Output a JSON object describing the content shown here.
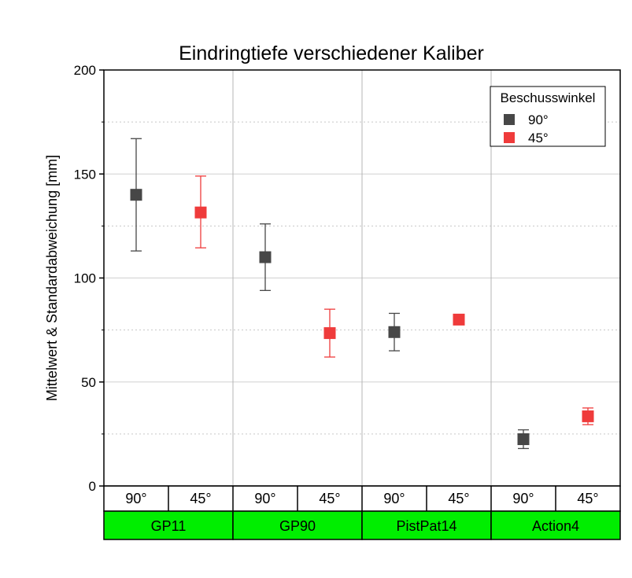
{
  "chart_data": {
    "type": "scatter",
    "title": "Eindringtiefe verschiedener Kaliber",
    "ylabel": "Mittelwert & Standardabweichung [mm]",
    "ylim": [
      0,
      200
    ],
    "yticks": [
      "0",
      "50",
      "100",
      "150",
      "200"
    ],
    "grid": true,
    "legend": {
      "title": "Beschusswinkel",
      "placement": "top-right",
      "entries": [
        "90°",
        "45°"
      ]
    },
    "colors": {
      "90°": "#474747",
      "45°": "#ef3b3b",
      "group_band": "#00ee00"
    },
    "groups": [
      "GP11",
      "GP90",
      "PistPat14",
      "Action4"
    ],
    "categories": [
      "90°",
      "45°",
      "90°",
      "45°",
      "90°",
      "45°",
      "90°",
      "45°"
    ],
    "series": [
      {
        "name": "90°",
        "x_index": [
          0,
          2,
          4,
          6
        ],
        "values": [
          140,
          110,
          74,
          22.5
        ],
        "error_low": [
          113,
          94,
          65,
          18
        ],
        "error_high": [
          167,
          126,
          83,
          27
        ]
      },
      {
        "name": "45°",
        "x_index": [
          1,
          3,
          5,
          7
        ],
        "values": [
          131.5,
          73.5,
          80,
          33.5
        ],
        "error_low": [
          114.5,
          62,
          80,
          29.5
        ],
        "error_high": [
          149,
          85,
          80,
          37.5
        ]
      }
    ]
  }
}
